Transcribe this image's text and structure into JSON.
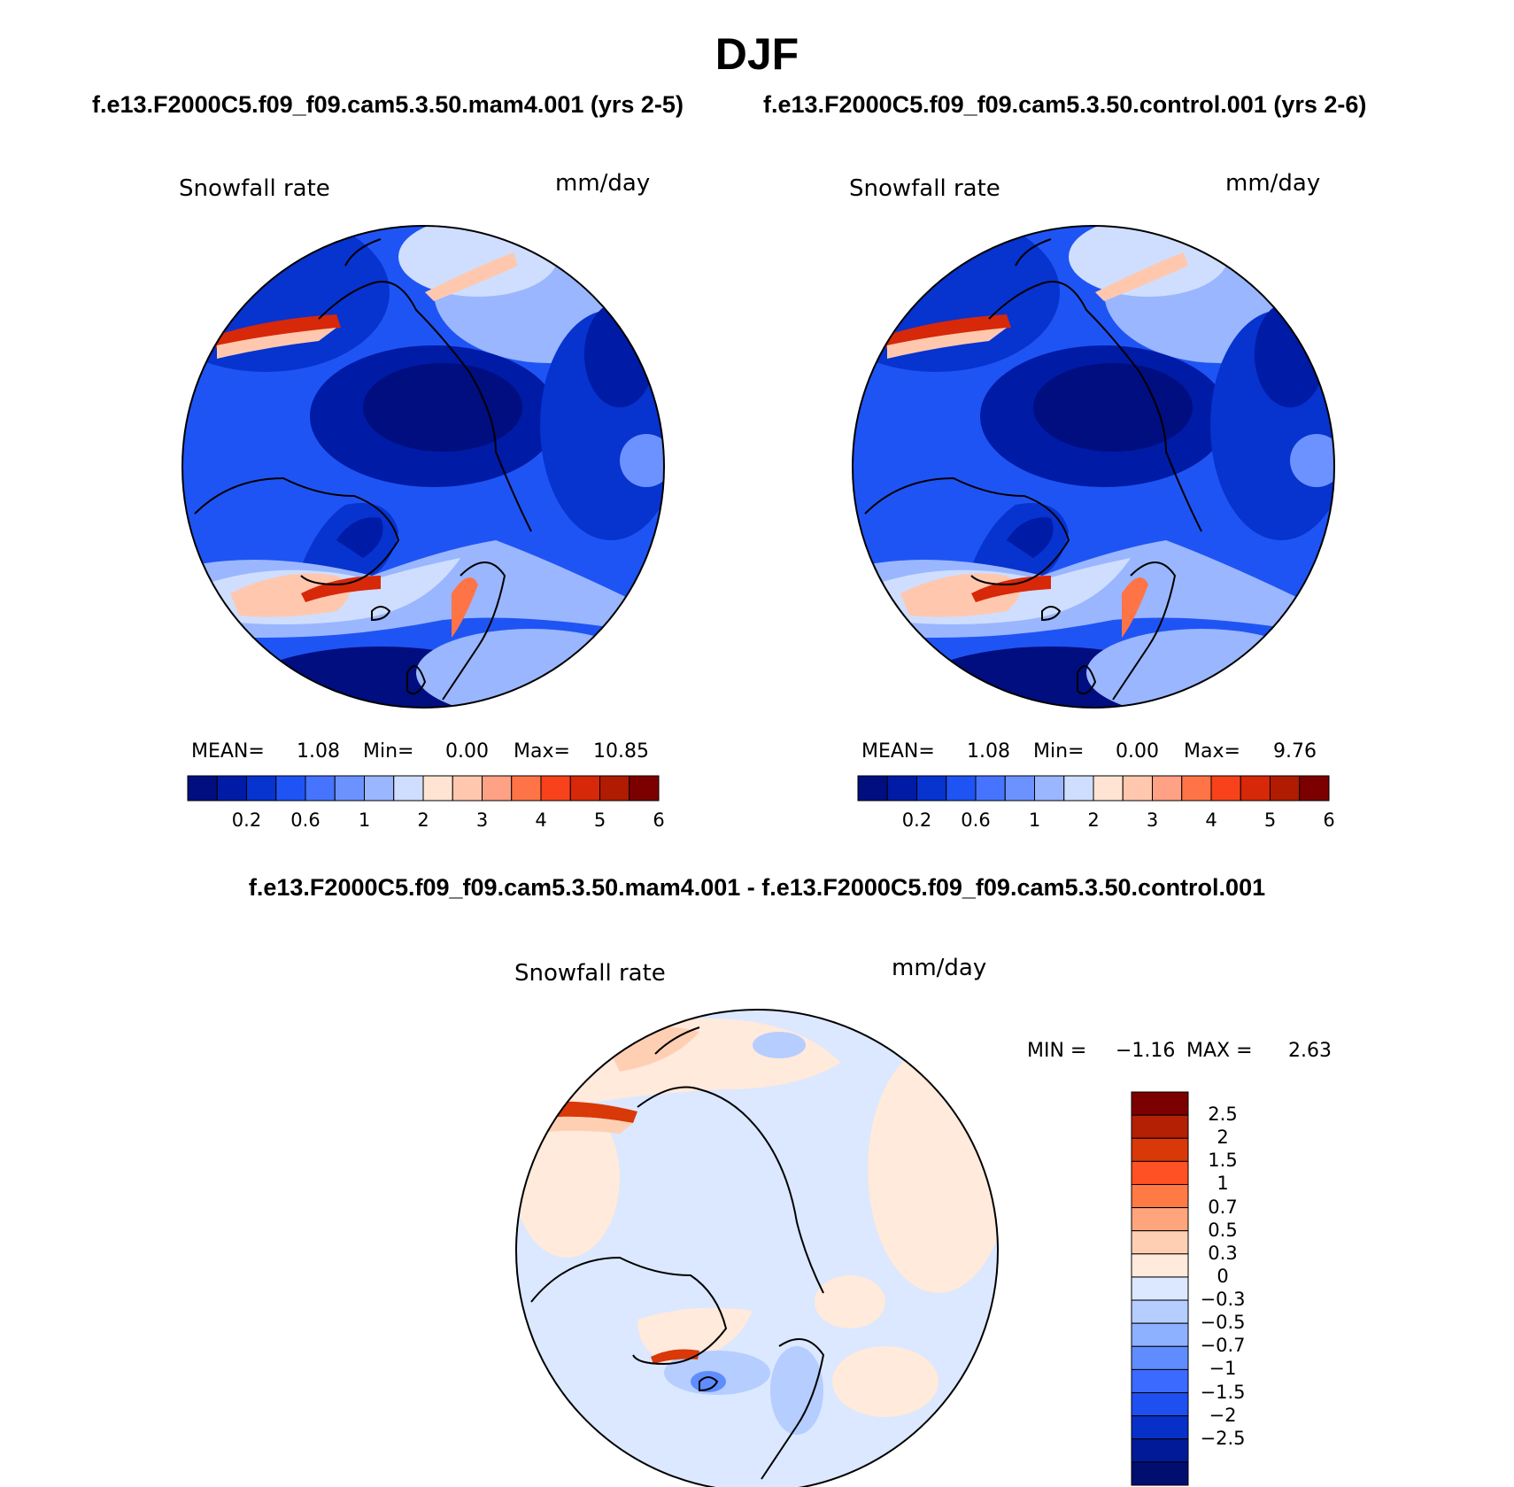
{
  "season_title": "DJF",
  "top_subtitle_left": "f.e13.F2000C5.f09_f09.cam5.3.50.mam4.001 (yrs 2-5)",
  "top_subtitle_right": "f.e13.F2000C5.f09_f09.cam5.3.50.control.001 (yrs 2-6)",
  "diff_subtitle": "f.e13.F2000C5.f09_f09.cam5.3.50.mam4.001 - f.e13.F2000C5.f09_f09.cam5.3.50.control.001",
  "projection": "north polar stereographic",
  "panels": [
    {
      "id": "mam4",
      "variable": "Snowfall rate",
      "units": "mm/day",
      "stats": {
        "mean_label": "MEAN=",
        "mean": "1.08",
        "min_label": "Min=",
        "min": "0.00",
        "max_label": "Max=",
        "max": "10.85"
      }
    },
    {
      "id": "control",
      "variable": "Snowfall rate",
      "units": "mm/day",
      "stats": {
        "mean_label": "MEAN=",
        "mean": "1.08",
        "min_label": "Min=",
        "min": "0.00",
        "max_label": "Max=",
        "max": "9.76"
      }
    },
    {
      "id": "difference",
      "variable": "Snowfall rate",
      "units": "mm/day",
      "stats": {
        "min_label": "MIN =",
        "min": "−1.16",
        "max_label": "MAX =",
        "max": "2.63"
      }
    }
  ],
  "abs_colorbar": {
    "colors": [
      "#000e80",
      "#001ba5",
      "#0733cf",
      "#1f54f4",
      "#4674ff",
      "#6b92ff",
      "#9ab6ff",
      "#cfdeff",
      "#ffe4d3",
      "#ffc8ae",
      "#fea184",
      "#ff7446",
      "#f7421c",
      "#d72809",
      "#b01b01",
      "#7d0000"
    ],
    "tick_labels": [
      "0.2",
      "0.6",
      "1",
      "2",
      "3",
      "4",
      "5",
      "6"
    ]
  },
  "diff_colorbar": {
    "colors": [
      "#7d0000",
      "#b42003",
      "#d93808",
      "#ff5124",
      "#ff7a45",
      "#fea57d",
      "#ffcfb4",
      "#ffeadb",
      "#dbe8ff",
      "#b5cdff",
      "#8db0ff",
      "#5f8dff",
      "#3a6aff",
      "#1e4ff0",
      "#0730c8",
      "#001a98",
      "#000e70"
    ],
    "tick_labels": [
      "2.5",
      "2",
      "1.5",
      "1",
      "0.7",
      "0.5",
      "0.3",
      "0",
      "−0.3",
      "−0.5",
      "−0.7",
      "−1",
      "−1.5",
      "−2",
      "−2.5"
    ]
  }
}
